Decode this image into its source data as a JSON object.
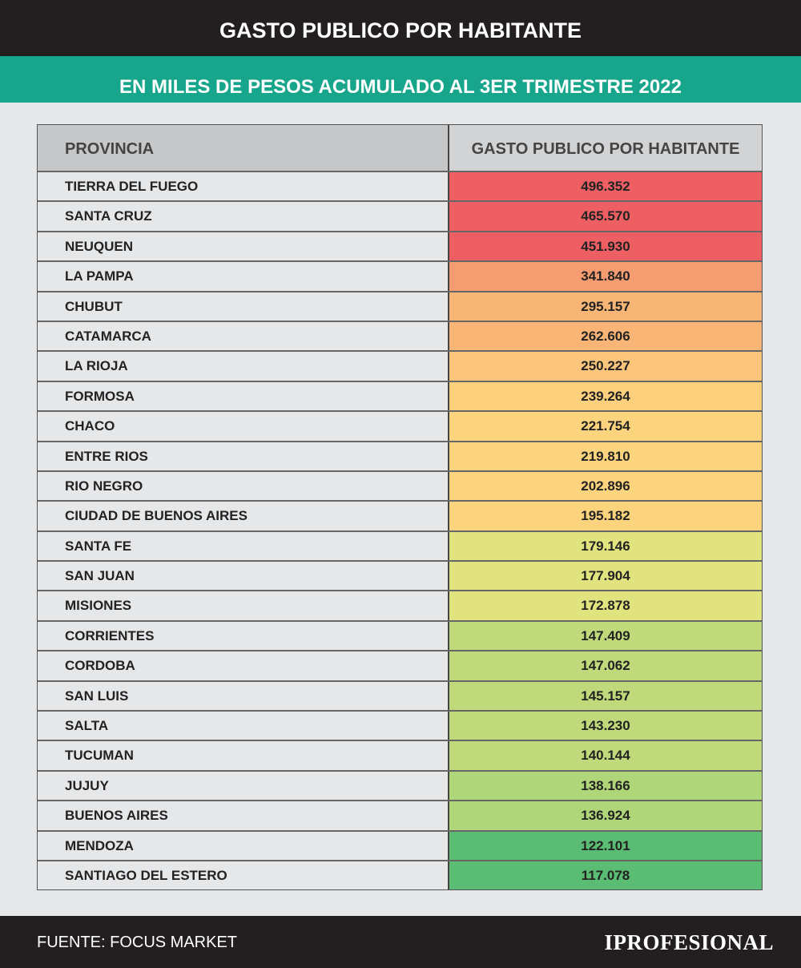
{
  "header": {
    "title": "GASTO PUBLICO POR HABITANTE",
    "subtitle": "EN MILES DE PESOS ACUMULADO AL 3ER TRIMESTRE 2022"
  },
  "table": {
    "columns": [
      "PROVINCIA",
      "GASTO PUBLICO POR HABITANTE"
    ],
    "rows": [
      {
        "province": "TIERRA DEL FUEGO",
        "value": "496.352",
        "color": "#ee5f64"
      },
      {
        "province": "SANTA CRUZ",
        "value": "465.570",
        "color": "#ee5f64"
      },
      {
        "province": "NEUQUEN",
        "value": "451.930",
        "color": "#ee5f64"
      },
      {
        "province": "LA PAMPA",
        "value": "341.840",
        "color": "#f59c70"
      },
      {
        "province": "CHUBUT",
        "value": "295.157",
        "color": "#f8b676"
      },
      {
        "province": "CATAMARCA",
        "value": "262.606",
        "color": "#f9b575"
      },
      {
        "province": "LA RIOJA",
        "value": "250.227",
        "color": "#fbc67b"
      },
      {
        "province": "FORMOSA",
        "value": "239.264",
        "color": "#fcd07c"
      },
      {
        "province": "CHACO",
        "value": "221.754",
        "color": "#fdd47e"
      },
      {
        "province": "ENTRE RIOS",
        "value": "219.810",
        "color": "#fdd47e"
      },
      {
        "province": "RIO NEGRO",
        "value": "202.896",
        "color": "#fdd47e"
      },
      {
        "province": "CIUDAD DE BUENOS AIRES",
        "value": "195.182",
        "color": "#fdd47e"
      },
      {
        "province": "SANTA FE",
        "value": "179.146",
        "color": "#e1e37f"
      },
      {
        "province": "SAN JUAN",
        "value": "177.904",
        "color": "#e1e37f"
      },
      {
        "province": "MISIONES",
        "value": "172.878",
        "color": "#e1e37f"
      },
      {
        "province": "CORRIENTES",
        "value": "147.409",
        "color": "#c0da7b"
      },
      {
        "province": "CORDOBA",
        "value": "147.062",
        "color": "#c0da7b"
      },
      {
        "province": "SAN LUIS",
        "value": "145.157",
        "color": "#c0da7b"
      },
      {
        "province": "SALTA",
        "value": "143.230",
        "color": "#c0da7b"
      },
      {
        "province": "TUCUMAN",
        "value": "140.144",
        "color": "#c0da7b"
      },
      {
        "province": "JUJUY",
        "value": "138.166",
        "color": "#b0d67a"
      },
      {
        "province": "BUENOS AIRES",
        "value": "136.924",
        "color": "#b0d67a"
      },
      {
        "province": "MENDOZA",
        "value": "122.101",
        "color": "#5bbd73"
      },
      {
        "province": "SANTIAGO DEL ESTERO",
        "value": "117.078",
        "color": "#5bbd73"
      }
    ]
  },
  "footer": {
    "source": "FUENTE: FOCUS MARKET",
    "brand": "IPROFESIONAL"
  }
}
